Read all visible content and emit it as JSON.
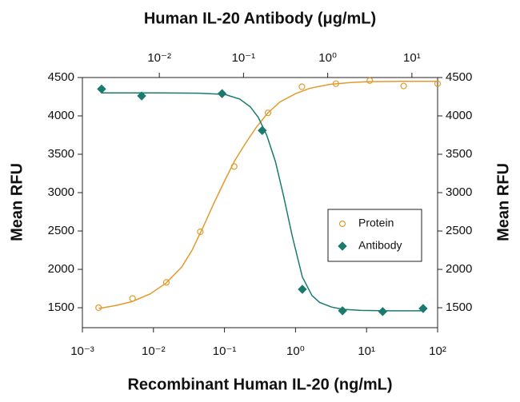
{
  "chart_data": {
    "type": "scatter",
    "title": "Human IL-20 Antibody (μg/mL)",
    "xlabel": "Recombinant Human IL-20 (ng/mL)",
    "ylabel": "Mean RFU",
    "y2label": "Mean RFU",
    "xscale": "log",
    "x2scale": "log",
    "xlim": [
      0.001,
      100
    ],
    "xticks": [
      {
        "value": 0.001,
        "label": "10⁻³"
      },
      {
        "value": 0.01,
        "label": "10⁻²"
      },
      {
        "value": 0.1,
        "label": "10⁻¹"
      },
      {
        "value": 1,
        "label": "10⁰"
      },
      {
        "value": 10,
        "label": "10¹"
      },
      {
        "value": 100,
        "label": "10²"
      }
    ],
    "x2lim": [
      0.00122,
      20.2
    ],
    "x2ticks": [
      {
        "value": 0.01,
        "label": "10⁻²"
      },
      {
        "value": 0.1,
        "label": "10⁻¹"
      },
      {
        "value": 1,
        "label": "10⁰"
      },
      {
        "value": 10,
        "label": "10¹"
      }
    ],
    "ylim": [
      1240,
      4500
    ],
    "yticks": [
      1500,
      2000,
      2500,
      3000,
      3500,
      4000,
      4500
    ],
    "y2lim": [
      1240,
      4500
    ],
    "y2ticks": [
      1500,
      2000,
      2500,
      3000,
      3500,
      4000,
      4500
    ],
    "grid": false,
    "legend": "right",
    "series": [
      {
        "name": "Protein",
        "color": "#e39a2b",
        "marker": "circle",
        "xaxis": "x",
        "x": [
          0.00169,
          0.00508,
          0.0152,
          0.0457,
          0.137,
          0.41,
          1.23,
          3.7,
          11.1,
          33.3,
          100
        ],
        "values": [
          1500,
          1620,
          1830,
          2490,
          3340,
          4040,
          4380,
          4420,
          4460,
          4390,
          4420
        ],
        "curve_x": [
          0.0017,
          0.003,
          0.005,
          0.009,
          0.015,
          0.025,
          0.035,
          0.05,
          0.07,
          0.1,
          0.14,
          0.2,
          0.28,
          0.4,
          0.6,
          1,
          1.6,
          3,
          6,
          10,
          30,
          100
        ],
        "curve_y": [
          1490,
          1530,
          1580,
          1680,
          1820,
          2030,
          2250,
          2550,
          2850,
          3150,
          3420,
          3650,
          3850,
          4030,
          4180,
          4290,
          4360,
          4410,
          4435,
          4445,
          4450,
          4450
        ]
      },
      {
        "name": "Antibody",
        "color": "#1a7a6e",
        "marker": "diamond",
        "xaxis": "x2",
        "x": [
          0.00206,
          0.00617,
          0.0556,
          0.167,
          0.5,
          1.5,
          4.5,
          13.6
        ],
        "values": [
          4350,
          4260,
          4290,
          3810,
          1740,
          1460,
          1450,
          1490
        ],
        "curve_x": [
          0.00206,
          0.01,
          0.03,
          0.06,
          0.09,
          0.12,
          0.15,
          0.19,
          0.24,
          0.3,
          0.38,
          0.5,
          0.65,
          0.8,
          1.1,
          1.5,
          2.5,
          5,
          13.6
        ],
        "curve_y": [
          4300,
          4300,
          4295,
          4280,
          4220,
          4120,
          3980,
          3740,
          3400,
          2950,
          2430,
          1900,
          1660,
          1570,
          1510,
          1480,
          1465,
          1460,
          1460
        ]
      }
    ]
  }
}
